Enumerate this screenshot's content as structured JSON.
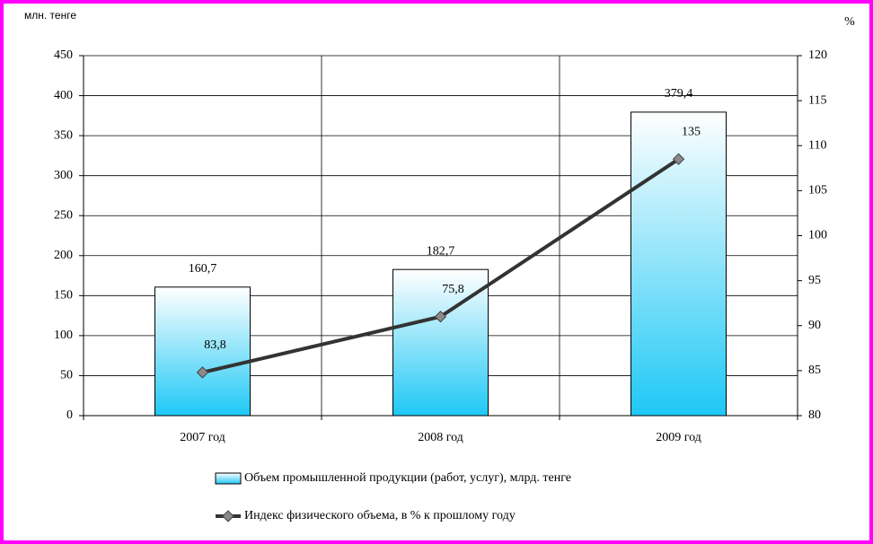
{
  "chart_data": {
    "type": "bar-line",
    "y_label": "млн. тенге",
    "y2_label": "%",
    "categories": [
      "2007 год",
      "2008 год",
      "2009 год"
    ],
    "series": [
      {
        "name": "Объем промышленной продукции (работ, услуг), млрд. тенге",
        "type": "bar",
        "color": "#1ec8f5",
        "values": [
          160.7,
          182.7,
          379.4
        ],
        "value_labels": [
          "160,7",
          "182,7",
          "379,4"
        ]
      },
      {
        "name": "Индекс физического объема, в % к прошлому году",
        "type": "line",
        "axis": "y2",
        "color": "#333333",
        "marker_color": "#8a8a8a",
        "values": [
          84.8,
          91.0,
          108.5
        ]
      }
    ],
    "annotations": [
      "83,8",
      "75,8",
      "135"
    ],
    "ylim": [
      0,
      450
    ],
    "yticks": [
      0,
      50,
      100,
      150,
      200,
      250,
      300,
      350,
      400,
      450
    ],
    "y2lim": [
      80,
      120
    ],
    "y2ticks": [
      80,
      85,
      90,
      95,
      100,
      105,
      110,
      115,
      120
    ],
    "grid": true,
    "legend": "bottom"
  }
}
